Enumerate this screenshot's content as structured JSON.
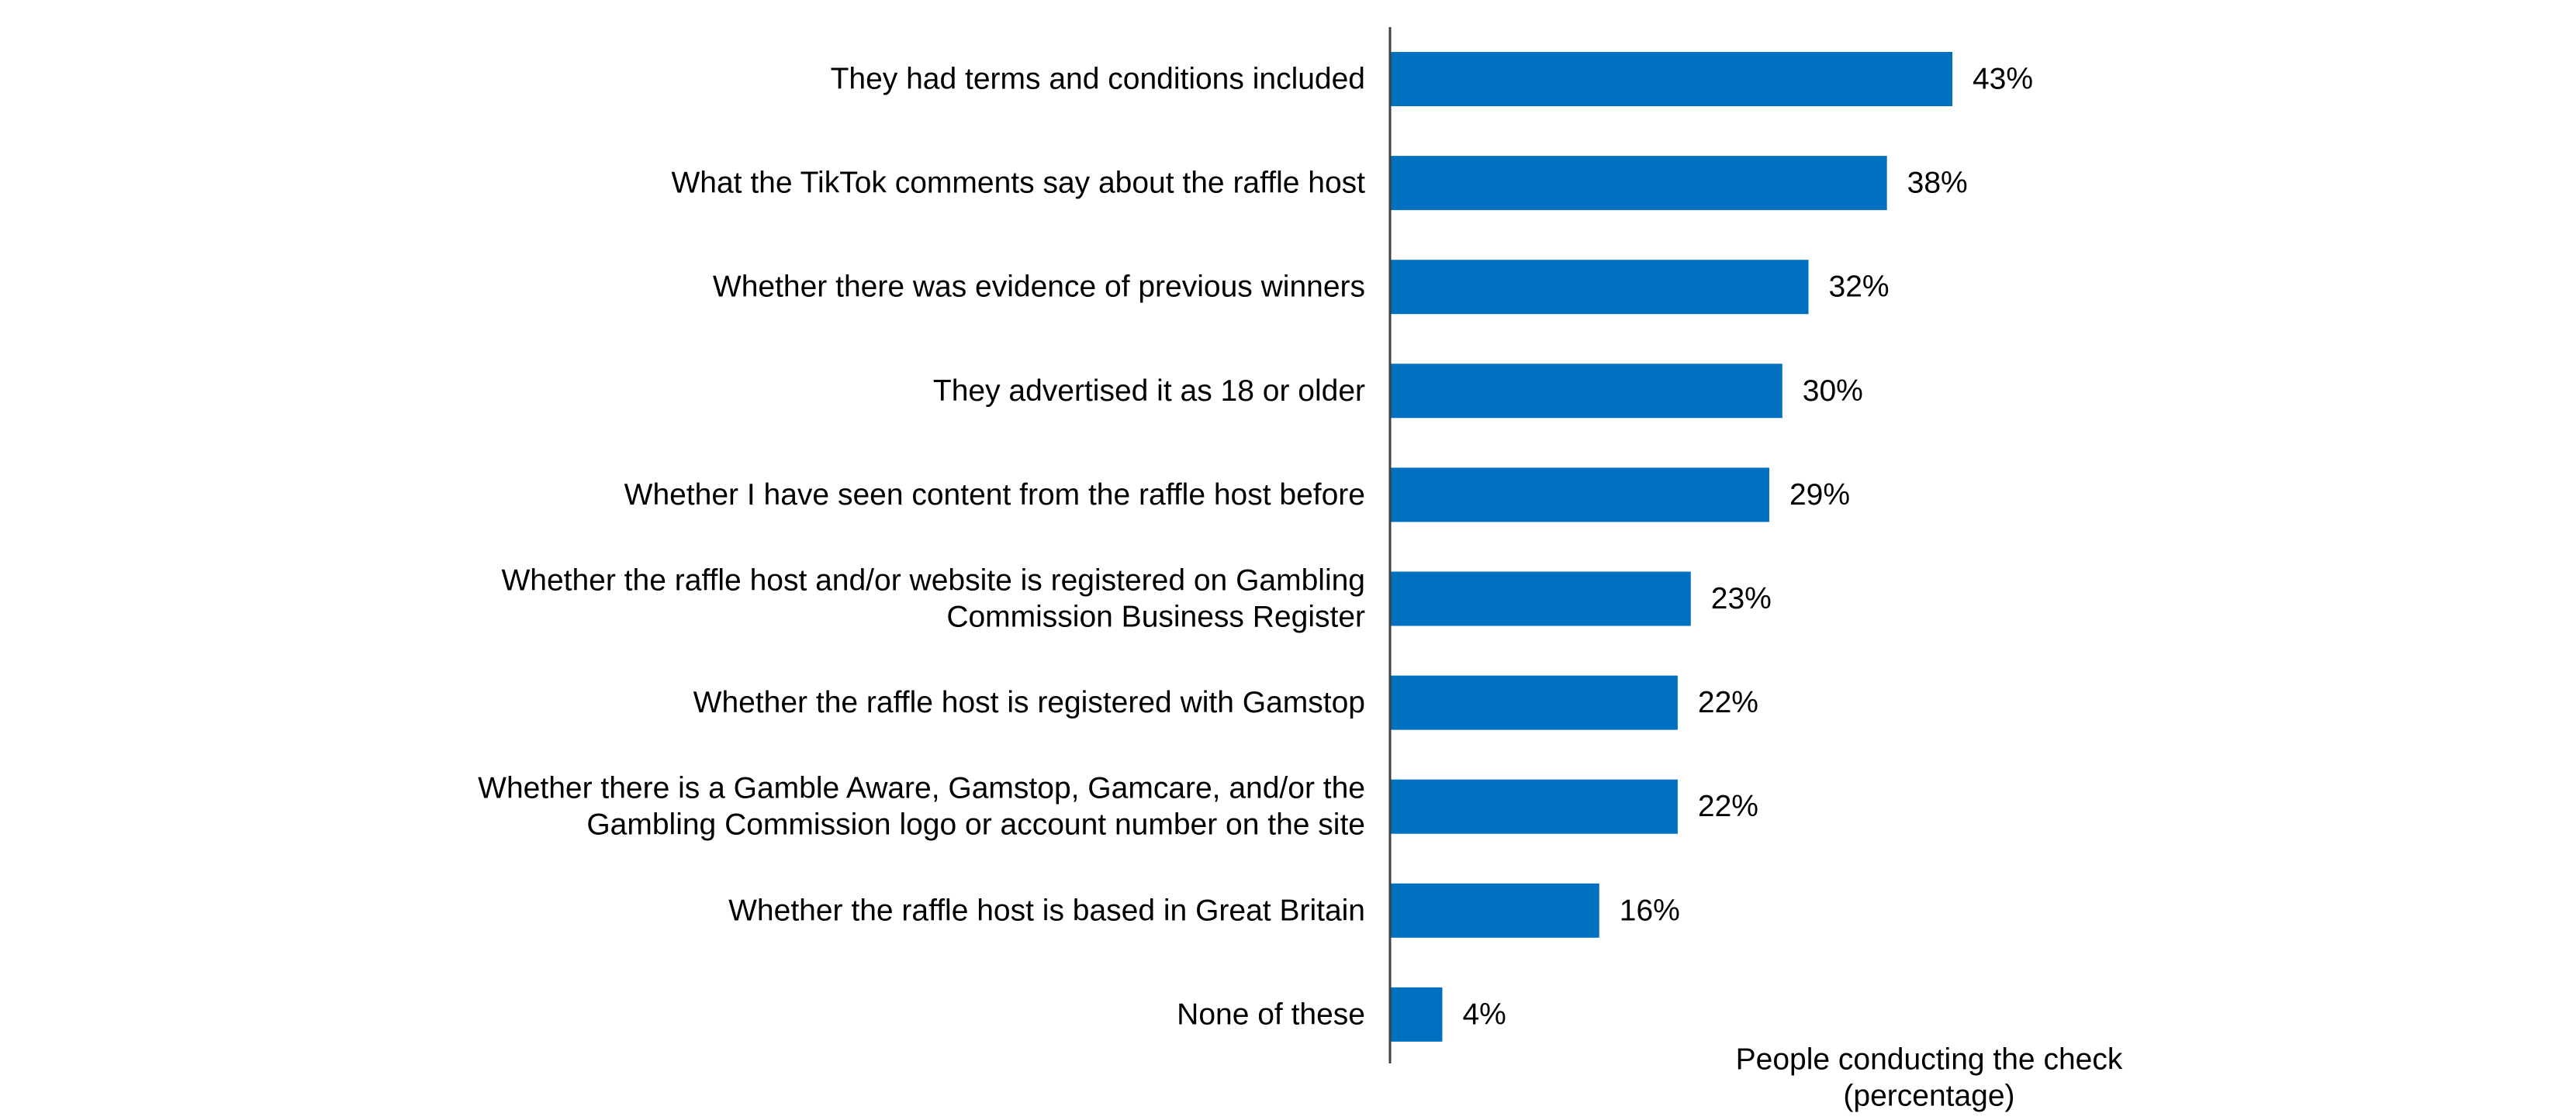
{
  "chart_data": {
    "type": "bar",
    "orientation": "horizontal",
    "categories": [
      [
        "They had terms and conditions included"
      ],
      [
        "What the TikTok comments say about the raffle host"
      ],
      [
        "Whether there was evidence of previous winners"
      ],
      [
        "They advertised it as 18 or older"
      ],
      [
        "Whether I have seen content from the raffle host before"
      ],
      [
        "Whether the raffle host and/or website is registered on Gambling",
        "Commission Business Register"
      ],
      [
        "Whether the raffle host is registered with Gamstop"
      ],
      [
        "Whether there is a Gamble Aware, Gamstop, Gamcare, and/or the",
        "Gambling Commission logo or account number on the site"
      ],
      [
        "Whether the raffle host is based in Great Britain"
      ],
      [
        "None of these"
      ]
    ],
    "values": [
      43,
      38,
      32,
      30,
      29,
      23,
      22,
      22,
      16,
      4
    ],
    "value_labels": [
      "43%",
      "38%",
      "32%",
      "30%",
      "29%",
      "23%",
      "22%",
      "22%",
      "16%",
      "4%"
    ],
    "xlabel": [
      "People conducting the check",
      "(percentage)"
    ],
    "ylabel": "",
    "title": "",
    "xlim": [
      0,
      100
    ],
    "grid": false,
    "legend": "none",
    "bar_color": "#0070C0",
    "axis_color": "#404040"
  }
}
